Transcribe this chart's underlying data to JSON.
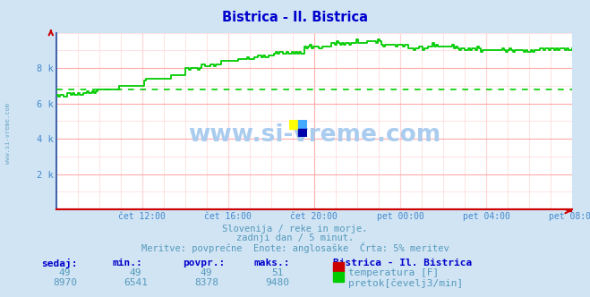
{
  "title": "Bistrica - Il. Bistrica",
  "title_color": "#0000cc",
  "bg_color": "#d0e4f4",
  "plot_bg_color": "#ffffff",
  "grid_color_major": "#ffaaaa",
  "grid_color_minor": "#ffdddd",
  "x_labels": [
    "čet 12:00",
    "čet 16:00",
    "čet 20:00",
    "pet 00:00",
    "pet 04:00",
    "pet 08:00"
  ],
  "x_ticks_pos": [
    0.1667,
    0.3333,
    0.5,
    0.6667,
    0.8333,
    1.0
  ],
  "ylabel_color": "#4488cc",
  "axis_color": "#cc0000",
  "y_ticks": [
    0,
    2000,
    4000,
    6000,
    8000
  ],
  "y_tick_labels": [
    "",
    "2 k",
    "4 k",
    "6 k",
    "8 k"
  ],
  "ylim": [
    0,
    10000
  ],
  "watermark_text": "www.si-vreme.com",
  "watermark_color": "#aaccee",
  "subtitle1": "Slovenija / reke in morje.",
  "subtitle2": "zadnji dan / 5 minut.",
  "subtitle3": "Meritve: povprečne  Enote: anglosaške  Črta: 5% meritev",
  "subtitle_color": "#5599bb",
  "legend_title": "Bistrica - Il. Bistrica",
  "legend_color1": "#cc0000",
  "legend_color2": "#00cc00",
  "legend_label1": "temperatura [F]",
  "legend_label2": "pretok[čevelj3/min]",
  "table_headers": [
    "sedaj:",
    "min.:",
    "povpr.:",
    "maks.:"
  ],
  "table_row1": [
    "49",
    "49",
    "49",
    "51"
  ],
  "table_row2": [
    "8970",
    "6541",
    "8378",
    "9480"
  ],
  "flow_avg": 6800,
  "num_points": 288,
  "left_watermark": "www.si-vreme.com",
  "spine_color_left": "#4466aa",
  "spine_color_bottom": "#cc0000"
}
